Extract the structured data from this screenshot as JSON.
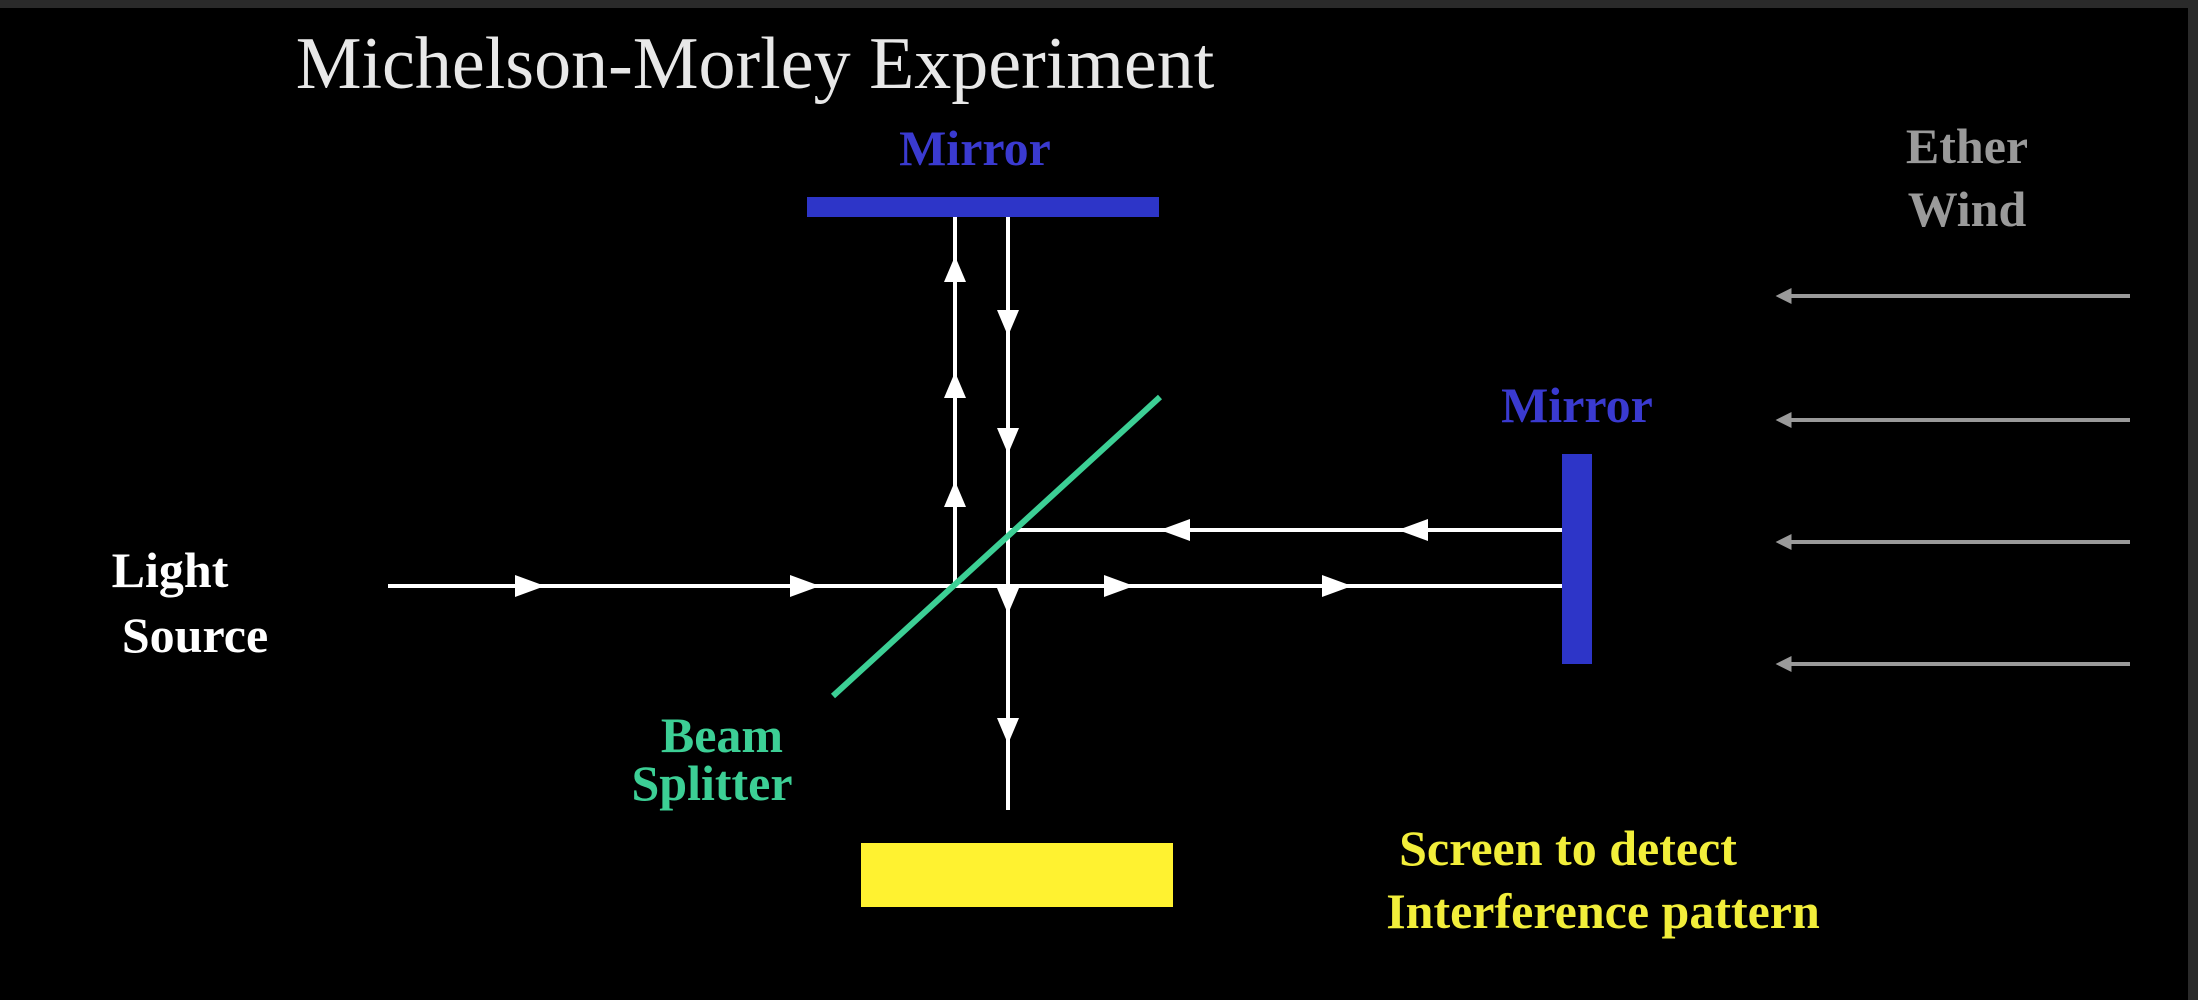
{
  "title": "Michelson-Morley Experiment",
  "labels": {
    "top_mirror": "Mirror",
    "right_mirror": "Mirror",
    "ether_wind_line1": "Ether",
    "ether_wind_line2": "Wind",
    "light_source_line1": "Light",
    "light_source_line2": "Source",
    "beam_splitter_line1": "Beam",
    "beam_splitter_line2": "Splitter",
    "screen_line1": "Screen to detect",
    "screen_line2": "Interference pattern"
  },
  "colors": {
    "background": "#000000",
    "title": "#e8e8e8",
    "mirror": "#2d35c8",
    "mirror_label": "#3a3ad0",
    "beam": "#ffffff",
    "beam_splitter": "#3ccf95",
    "ether_wind": "#9a9a9a",
    "screen": "#fff230",
    "screen_label": "#f2ee3a",
    "light_label": "#ffffff"
  }
}
